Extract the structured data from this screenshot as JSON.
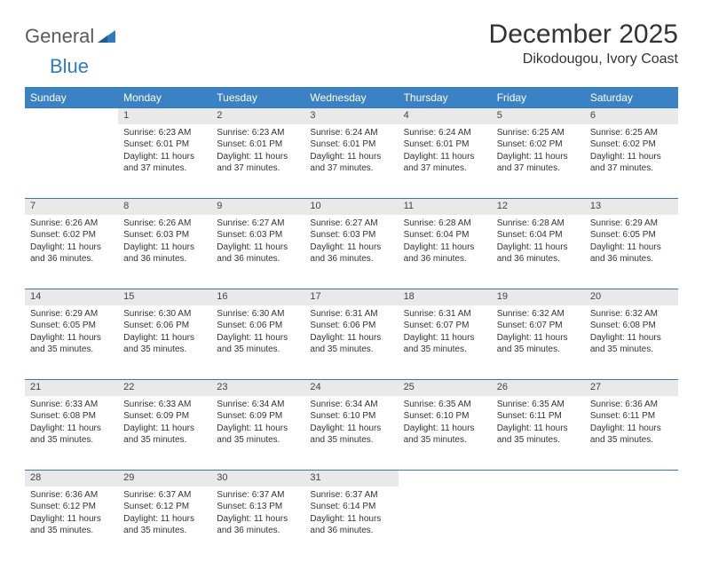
{
  "logo": {
    "part1": "General",
    "part2": "Blue"
  },
  "title": "December 2025",
  "location": "Dikodougou, Ivory Coast",
  "colors": {
    "header_bg": "#3b82c4",
    "header_text": "#ffffff",
    "daynum_bg": "#e9e9e9",
    "divider": "#2f7bbf",
    "logo_gray": "#5a5a5a",
    "logo_blue": "#2f7bbf",
    "text": "#333333",
    "background": "#ffffff"
  },
  "typography": {
    "title_fontsize": 30,
    "location_fontsize": 16,
    "weekday_fontsize": 12,
    "daynum_fontsize": 11,
    "cell_fontsize": 10
  },
  "weekdays": [
    "Sunday",
    "Monday",
    "Tuesday",
    "Wednesday",
    "Thursday",
    "Friday",
    "Saturday"
  ],
  "weeks": [
    [
      null,
      {
        "n": "1",
        "sr": "Sunrise: 6:23 AM",
        "ss": "Sunset: 6:01 PM",
        "dl": "Daylight: 11 hours and 37 minutes."
      },
      {
        "n": "2",
        "sr": "Sunrise: 6:23 AM",
        "ss": "Sunset: 6:01 PM",
        "dl": "Daylight: 11 hours and 37 minutes."
      },
      {
        "n": "3",
        "sr": "Sunrise: 6:24 AM",
        "ss": "Sunset: 6:01 PM",
        "dl": "Daylight: 11 hours and 37 minutes."
      },
      {
        "n": "4",
        "sr": "Sunrise: 6:24 AM",
        "ss": "Sunset: 6:01 PM",
        "dl": "Daylight: 11 hours and 37 minutes."
      },
      {
        "n": "5",
        "sr": "Sunrise: 6:25 AM",
        "ss": "Sunset: 6:02 PM",
        "dl": "Daylight: 11 hours and 37 minutes."
      },
      {
        "n": "6",
        "sr": "Sunrise: 6:25 AM",
        "ss": "Sunset: 6:02 PM",
        "dl": "Daylight: 11 hours and 37 minutes."
      }
    ],
    [
      {
        "n": "7",
        "sr": "Sunrise: 6:26 AM",
        "ss": "Sunset: 6:02 PM",
        "dl": "Daylight: 11 hours and 36 minutes."
      },
      {
        "n": "8",
        "sr": "Sunrise: 6:26 AM",
        "ss": "Sunset: 6:03 PM",
        "dl": "Daylight: 11 hours and 36 minutes."
      },
      {
        "n": "9",
        "sr": "Sunrise: 6:27 AM",
        "ss": "Sunset: 6:03 PM",
        "dl": "Daylight: 11 hours and 36 minutes."
      },
      {
        "n": "10",
        "sr": "Sunrise: 6:27 AM",
        "ss": "Sunset: 6:03 PM",
        "dl": "Daylight: 11 hours and 36 minutes."
      },
      {
        "n": "11",
        "sr": "Sunrise: 6:28 AM",
        "ss": "Sunset: 6:04 PM",
        "dl": "Daylight: 11 hours and 36 minutes."
      },
      {
        "n": "12",
        "sr": "Sunrise: 6:28 AM",
        "ss": "Sunset: 6:04 PM",
        "dl": "Daylight: 11 hours and 36 minutes."
      },
      {
        "n": "13",
        "sr": "Sunrise: 6:29 AM",
        "ss": "Sunset: 6:05 PM",
        "dl": "Daylight: 11 hours and 36 minutes."
      }
    ],
    [
      {
        "n": "14",
        "sr": "Sunrise: 6:29 AM",
        "ss": "Sunset: 6:05 PM",
        "dl": "Daylight: 11 hours and 35 minutes."
      },
      {
        "n": "15",
        "sr": "Sunrise: 6:30 AM",
        "ss": "Sunset: 6:06 PM",
        "dl": "Daylight: 11 hours and 35 minutes."
      },
      {
        "n": "16",
        "sr": "Sunrise: 6:30 AM",
        "ss": "Sunset: 6:06 PM",
        "dl": "Daylight: 11 hours and 35 minutes."
      },
      {
        "n": "17",
        "sr": "Sunrise: 6:31 AM",
        "ss": "Sunset: 6:06 PM",
        "dl": "Daylight: 11 hours and 35 minutes."
      },
      {
        "n": "18",
        "sr": "Sunrise: 6:31 AM",
        "ss": "Sunset: 6:07 PM",
        "dl": "Daylight: 11 hours and 35 minutes."
      },
      {
        "n": "19",
        "sr": "Sunrise: 6:32 AM",
        "ss": "Sunset: 6:07 PM",
        "dl": "Daylight: 11 hours and 35 minutes."
      },
      {
        "n": "20",
        "sr": "Sunrise: 6:32 AM",
        "ss": "Sunset: 6:08 PM",
        "dl": "Daylight: 11 hours and 35 minutes."
      }
    ],
    [
      {
        "n": "21",
        "sr": "Sunrise: 6:33 AM",
        "ss": "Sunset: 6:08 PM",
        "dl": "Daylight: 11 hours and 35 minutes."
      },
      {
        "n": "22",
        "sr": "Sunrise: 6:33 AM",
        "ss": "Sunset: 6:09 PM",
        "dl": "Daylight: 11 hours and 35 minutes."
      },
      {
        "n": "23",
        "sr": "Sunrise: 6:34 AM",
        "ss": "Sunset: 6:09 PM",
        "dl": "Daylight: 11 hours and 35 minutes."
      },
      {
        "n": "24",
        "sr": "Sunrise: 6:34 AM",
        "ss": "Sunset: 6:10 PM",
        "dl": "Daylight: 11 hours and 35 minutes."
      },
      {
        "n": "25",
        "sr": "Sunrise: 6:35 AM",
        "ss": "Sunset: 6:10 PM",
        "dl": "Daylight: 11 hours and 35 minutes."
      },
      {
        "n": "26",
        "sr": "Sunrise: 6:35 AM",
        "ss": "Sunset: 6:11 PM",
        "dl": "Daylight: 11 hours and 35 minutes."
      },
      {
        "n": "27",
        "sr": "Sunrise: 6:36 AM",
        "ss": "Sunset: 6:11 PM",
        "dl": "Daylight: 11 hours and 35 minutes."
      }
    ],
    [
      {
        "n": "28",
        "sr": "Sunrise: 6:36 AM",
        "ss": "Sunset: 6:12 PM",
        "dl": "Daylight: 11 hours and 35 minutes."
      },
      {
        "n": "29",
        "sr": "Sunrise: 6:37 AM",
        "ss": "Sunset: 6:12 PM",
        "dl": "Daylight: 11 hours and 35 minutes."
      },
      {
        "n": "30",
        "sr": "Sunrise: 6:37 AM",
        "ss": "Sunset: 6:13 PM",
        "dl": "Daylight: 11 hours and 36 minutes."
      },
      {
        "n": "31",
        "sr": "Sunrise: 6:37 AM",
        "ss": "Sunset: 6:14 PM",
        "dl": "Daylight: 11 hours and 36 minutes."
      },
      null,
      null,
      null
    ]
  ]
}
